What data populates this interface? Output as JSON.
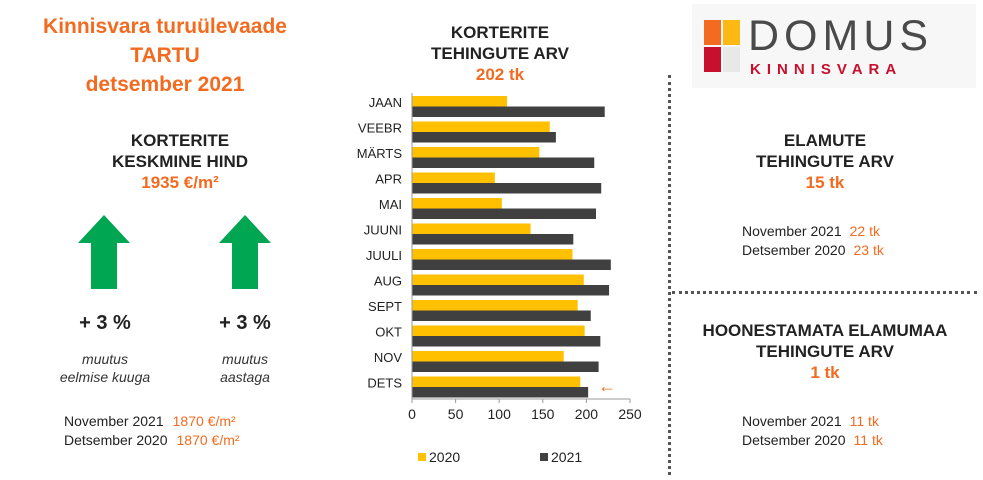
{
  "header": {
    "line1": "Kinnisvara turuülevaade",
    "line2": "TARTU",
    "line3": "detsember 2021"
  },
  "price_section": {
    "title1": "KORTERITE",
    "title2": "KESKMINE HIND",
    "value": "1935 €/m²",
    "change_month": {
      "pct": "+ 3 %",
      "cap1": "muutus",
      "cap2": "eelmise kuuga",
      "direction": "up"
    },
    "change_year": {
      "pct": "+ 3 %",
      "cap1": "muutus",
      "cap2": "aastaga",
      "direction": "up"
    },
    "comparisons": [
      {
        "label": "November  2021",
        "value": "1870 €/m²"
      },
      {
        "label": "Detsember 2020",
        "value": "1870 €/m²"
      }
    ]
  },
  "apartments_section": {
    "title1": "KORTERITE",
    "title2": "TEHINGUTE ARV",
    "value": "202 tk"
  },
  "logo": {
    "brand": "DOMUS",
    "sub": "KINNISVARA",
    "colors": [
      "#F26B21",
      "#FDB913",
      "#C8102E",
      "#E8E8E8"
    ]
  },
  "houses_section": {
    "title1": "ELAMUTE",
    "title2": "TEHINGUTE ARV",
    "value": "15 tk",
    "comparisons": [
      {
        "label": "November  2021",
        "value": "22 tk"
      },
      {
        "label": "Detsember  2020",
        "value": "23 tk"
      }
    ]
  },
  "land_section": {
    "title1": "HOONESTAMATA ELAMUMAA",
    "title2": "TEHINGUTE ARV",
    "value": "1 tk",
    "comparisons": [
      {
        "label": "November  2021",
        "value": "11 tk"
      },
      {
        "label": "Detsember  2020",
        "value": "11 tk"
      }
    ]
  },
  "colors": {
    "accent": "#F26B21",
    "arrow_green": "#00A651",
    "series_2020": "#FFC000",
    "series_2021": "#404040"
  },
  "chart_data": {
    "type": "bar",
    "orientation": "horizontal",
    "categories": [
      "JAAN",
      "VEEBR",
      "MÄRTS",
      "APR",
      "MAI",
      "JUUNI",
      "JUULI",
      "AUG",
      "SEPT",
      "OKT",
      "NOV",
      "DETS"
    ],
    "series": [
      {
        "name": "2020",
        "color": "#FFC000",
        "values": [
          109,
          158,
          146,
          95,
          103,
          136,
          184,
          197,
          190,
          198,
          174,
          193
        ]
      },
      {
        "name": "2021",
        "color": "#404040",
        "values": [
          221,
          165,
          209,
          217,
          211,
          185,
          228,
          226,
          205,
          216,
          214,
          202
        ]
      }
    ],
    "xlim": [
      0,
      250
    ],
    "xticks": [
      "0",
      "50",
      "100",
      "150",
      "200",
      "250"
    ],
    "grid": false,
    "legend_position": "bottom",
    "annotation": "←"
  }
}
